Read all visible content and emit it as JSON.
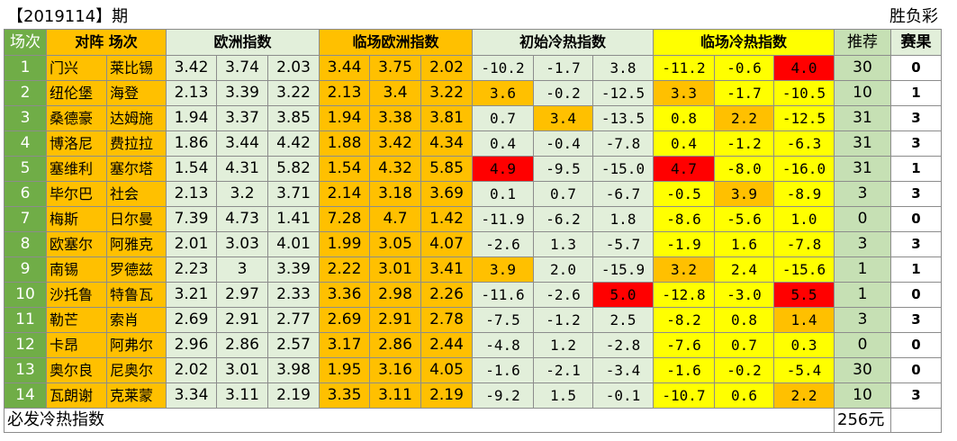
{
  "title": {
    "period": "【2019114】期",
    "lottery": "胜负彩"
  },
  "header": {
    "index": "场次",
    "teams": "对阵 场次",
    "europe": "欧洲指数",
    "live_europe": "临场欧洲指数",
    "initial_heat": "初始冷热指数",
    "live_heat": "临场冷热指数",
    "recommend": "推荐",
    "result": "赛果"
  },
  "rows": [
    {
      "no": "1",
      "home": "门兴",
      "away": "莱比锡",
      "eu": [
        "3.42",
        "3.74",
        "2.03"
      ],
      "lin": [
        "3.44",
        "3.75",
        "2.02"
      ],
      "init": [
        "-10.2",
        "-1.7",
        "3.8"
      ],
      "live": [
        "-11.2",
        "-0.6",
        "4.0"
      ],
      "rec": "30",
      "res": "0"
    },
    {
      "no": "2",
      "home": "纽伦堡",
      "away": "海登",
      "eu": [
        "2.13",
        "3.39",
        "3.22"
      ],
      "lin": [
        "2.13",
        "3.4",
        "3.22"
      ],
      "init": [
        "3.6",
        "-0.2",
        "-12.5"
      ],
      "live": [
        "3.3",
        "-1.7",
        "-10.5"
      ],
      "rec": "10",
      "res": "1"
    },
    {
      "no": "3",
      "home": "桑德豪",
      "away": "达姆施",
      "eu": [
        "1.94",
        "3.37",
        "3.85"
      ],
      "lin": [
        "1.94",
        "3.38",
        "3.81"
      ],
      "init": [
        "0.7",
        "3.4",
        "-13.5"
      ],
      "live": [
        "0.8",
        "2.2",
        "-12.5"
      ],
      "rec": "31",
      "res": "3"
    },
    {
      "no": "4",
      "home": "博洛尼",
      "away": "费拉拉",
      "eu": [
        "1.86",
        "3.44",
        "4.42"
      ],
      "lin": [
        "1.88",
        "3.42",
        "4.34"
      ],
      "init": [
        "0.4",
        "-0.4",
        "-7.8"
      ],
      "live": [
        "0.4",
        "-1.2",
        "-6.3"
      ],
      "rec": "31",
      "res": "3"
    },
    {
      "no": "5",
      "home": "塞维利",
      "away": "塞尔塔",
      "eu": [
        "1.54",
        "4.31",
        "5.82"
      ],
      "lin": [
        "1.54",
        "4.32",
        "5.85"
      ],
      "init": [
        "4.9",
        "-9.5",
        "-15.0"
      ],
      "live": [
        "4.7",
        "-8.0",
        "-16.0"
      ],
      "rec": "31",
      "res": "1"
    },
    {
      "no": "6",
      "home": "毕尔巴",
      "away": "社会",
      "eu": [
        "2.13",
        "3.2",
        "3.71"
      ],
      "lin": [
        "2.14",
        "3.18",
        "3.69"
      ],
      "init": [
        "0.1",
        "0.7",
        "-6.7"
      ],
      "live": [
        "-0.5",
        "3.9",
        "-8.9"
      ],
      "rec": "3",
      "res": "3"
    },
    {
      "no": "7",
      "home": "梅斯",
      "away": "日尔曼",
      "eu": [
        "7.39",
        "4.73",
        "1.41"
      ],
      "lin": [
        "7.28",
        "4.7",
        "1.42"
      ],
      "init": [
        "-11.9",
        "-6.2",
        "1.8"
      ],
      "live": [
        "-8.6",
        "-5.6",
        "1.0"
      ],
      "rec": "0",
      "res": "0"
    },
    {
      "no": "8",
      "home": "欧塞尔",
      "away": "阿雅克",
      "eu": [
        "2.01",
        "3.03",
        "4.01"
      ],
      "lin": [
        "1.99",
        "3.05",
        "4.07"
      ],
      "init": [
        "-2.6",
        "1.3",
        "-5.7"
      ],
      "live": [
        "-1.9",
        "1.6",
        "-7.8"
      ],
      "rec": "3",
      "res": "3"
    },
    {
      "no": "9",
      "home": "南锡",
      "away": "罗德兹",
      "eu": [
        "2.23",
        "3",
        "3.39"
      ],
      "lin": [
        "2.22",
        "3.01",
        "3.41"
      ],
      "init": [
        "3.9",
        "2.0",
        "-15.9"
      ],
      "live": [
        "3.2",
        "2.4",
        "-15.6"
      ],
      "rec": "1",
      "res": "1"
    },
    {
      "no": "10",
      "home": "沙托鲁",
      "away": "特鲁瓦",
      "eu": [
        "3.21",
        "2.97",
        "2.33"
      ],
      "lin": [
        "3.36",
        "2.98",
        "2.26"
      ],
      "init": [
        "-11.6",
        "-2.6",
        "5.0"
      ],
      "live": [
        "-12.8",
        "-3.0",
        "5.5"
      ],
      "rec": "1",
      "res": "0"
    },
    {
      "no": "11",
      "home": "勒芒",
      "away": "索肖",
      "eu": [
        "2.69",
        "2.91",
        "2.77"
      ],
      "lin": [
        "2.69",
        "2.91",
        "2.78"
      ],
      "init": [
        "-7.5",
        "-1.2",
        "2.5"
      ],
      "live": [
        "-8.2",
        "0.8",
        "1.4"
      ],
      "rec": "3",
      "res": "3"
    },
    {
      "no": "12",
      "home": "卡昂",
      "away": "阿弗尔",
      "eu": [
        "2.96",
        "2.86",
        "2.57"
      ],
      "lin": [
        "3.17",
        "2.86",
        "2.44"
      ],
      "init": [
        "-4.8",
        "1.2",
        "-2.8"
      ],
      "live": [
        "-7.6",
        "0.7",
        "0.3"
      ],
      "rec": "0",
      "res": "0"
    },
    {
      "no": "13",
      "home": "奥尔良",
      "away": "尼奥尔",
      "eu": [
        "2.02",
        "3.01",
        "3.98"
      ],
      "lin": [
        "1.95",
        "3.16",
        "4.05"
      ],
      "init": [
        "-1.6",
        "-2.1",
        "-3.4"
      ],
      "live": [
        "-1.6",
        "-0.2",
        "-5.4"
      ],
      "rec": "30",
      "res": "0"
    },
    {
      "no": "14",
      "home": "瓦朗谢",
      "away": "克莱蒙",
      "eu": [
        "3.34",
        "3.11",
        "2.19"
      ],
      "lin": [
        "3.35",
        "3.11",
        "2.19"
      ],
      "init": [
        "-9.2",
        "1.5",
        "-0.1"
      ],
      "live": [
        "-10.7",
        "0.6",
        "2.2"
      ],
      "rec": "10",
      "res": "3"
    }
  ],
  "highlights": {
    "init": [
      [],
      [
        0
      ],
      [
        1
      ],
      [],
      [
        0
      ],
      [],
      [],
      [],
      [
        0
      ],
      [
        2
      ],
      [],
      [],
      [],
      []
    ],
    "init_red": [
      [],
      [],
      [],
      [],
      [
        0
      ],
      [],
      [],
      [],
      [],
      [
        2
      ],
      [],
      [],
      [],
      []
    ],
    "live": [
      [
        2
      ],
      [
        0
      ],
      [
        1
      ],
      [],
      [
        0
      ],
      [
        1
      ],
      [],
      [],
      [
        0
      ],
      [
        2
      ],
      [
        2
      ],
      [],
      [],
      [
        2
      ]
    ],
    "live_red": [
      [
        2
      ],
      [],
      [],
      [],
      [
        0
      ],
      [],
      [],
      [],
      [],
      [
        2
      ],
      [],
      [],
      [],
      []
    ]
  },
  "footer": {
    "label": "必发冷热指数",
    "amount": "256元"
  },
  "colors": {
    "index_green": "#70ad47",
    "orange": "#ffc000",
    "yellow": "#ffff00",
    "light_green": "#e2efda",
    "red": "#ff0000"
  }
}
